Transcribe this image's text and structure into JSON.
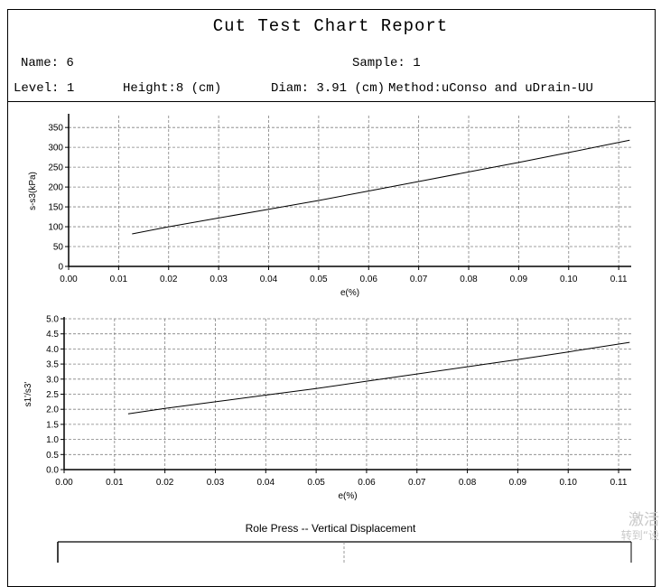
{
  "report": {
    "title": "Cut Test Chart Report",
    "name_label": "Name:",
    "name_value": "6",
    "sample_label": "Sample:",
    "sample_value": "1",
    "level_label": "Level:",
    "level_value": "1",
    "height_label": "Height:",
    "height_value": "8 (cm)",
    "diam_label": "Diam:",
    "diam_value": "3.91 (cm)",
    "method_label": "Method:",
    "method_value": "uConso and uDrain-UU"
  },
  "chart_data": [
    {
      "type": "line",
      "title": "",
      "xlabel": "e(%)",
      "ylabel": "s-s3(kPa)",
      "xlim": [
        0,
        0.1125
      ],
      "ylim": [
        0,
        380
      ],
      "xticks": [
        0.0,
        0.01,
        0.02,
        0.03,
        0.04,
        0.05,
        0.06,
        0.07,
        0.08,
        0.09,
        0.1,
        0.11
      ],
      "yticks": [
        0,
        50,
        100,
        150,
        200,
        250,
        300,
        350
      ],
      "grid": true,
      "series": [
        {
          "x": [
            0.0127,
            0.02,
            0.03,
            0.04,
            0.05,
            0.06,
            0.07,
            0.08,
            0.09,
            0.1,
            0.1122
          ],
          "y": [
            82,
            100,
            122,
            144,
            166,
            190,
            214,
            238,
            262,
            287,
            318
          ]
        }
      ]
    },
    {
      "type": "line",
      "title": "",
      "xlabel": "e(%)",
      "ylabel": "s1'/s3'",
      "xlim": [
        0,
        0.1125
      ],
      "ylim": [
        0,
        5.0
      ],
      "xticks": [
        0.0,
        0.01,
        0.02,
        0.03,
        0.04,
        0.05,
        0.06,
        0.07,
        0.08,
        0.09,
        0.1,
        0.11
      ],
      "yticks": [
        0.0,
        0.5,
        1.0,
        1.5,
        2.0,
        2.5,
        3.0,
        3.5,
        4.0,
        4.5,
        5.0
      ],
      "grid": true,
      "series": [
        {
          "x": [
            0.0127,
            0.02,
            0.03,
            0.04,
            0.05,
            0.06,
            0.07,
            0.08,
            0.09,
            0.1,
            0.1122
          ],
          "y": [
            1.85,
            2.03,
            2.25,
            2.47,
            2.69,
            2.93,
            3.17,
            3.41,
            3.65,
            3.9,
            4.22
          ]
        }
      ]
    },
    {
      "type": "line",
      "title": "Role Press -- Vertical Displacement",
      "xlabel": "",
      "ylabel": "",
      "grid": true,
      "series": []
    }
  ],
  "watermark": {
    "line1": "激活",
    "line2": "转到“设"
  }
}
